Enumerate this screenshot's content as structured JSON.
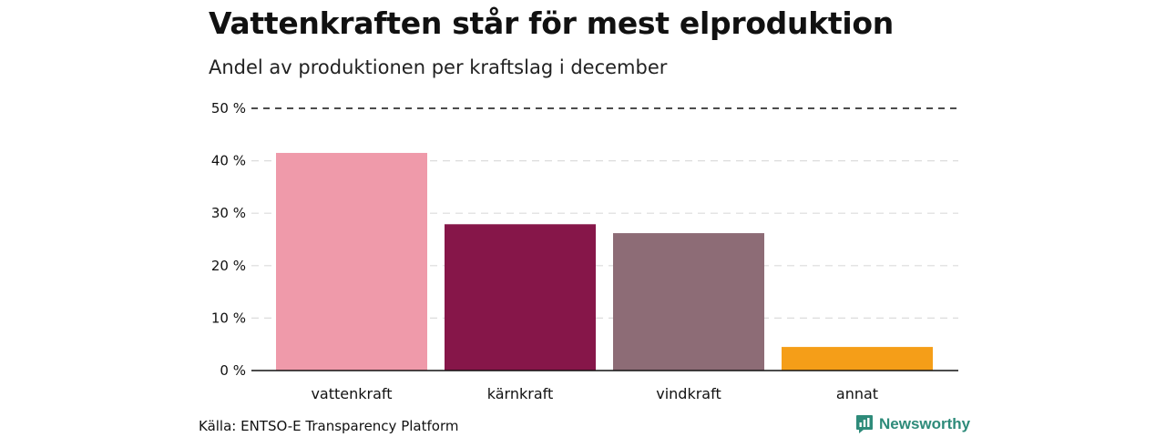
{
  "header": {
    "title": "Vattenkraften står för mest elproduktion",
    "subtitle": "Andel av produktionen per kraftslag i december"
  },
  "footer": {
    "source": "Källa: ENTSO-E Transparency Platform",
    "brand": "Newsworthy",
    "brand_icon": "newsworthy-logo-icon"
  },
  "colors": {
    "vattenkraft": "#ef9aaa",
    "karnkraft": "#861649",
    "vindkraft": "#8d6c76",
    "annat": "#f59e18",
    "brand": "#2e8b7a"
  },
  "chart_data": {
    "type": "bar",
    "title": "Vattenkraften står för mest elproduktion",
    "subtitle": "Andel av produktionen per kraftslag i december",
    "categories": [
      "vattenkraft",
      "kärnkraft",
      "vindkraft",
      "annat"
    ],
    "values": [
      41.5,
      27.9,
      26.2,
      4.5
    ],
    "colors": [
      "#ef9aaa",
      "#861649",
      "#8d6c76",
      "#f59e18"
    ],
    "xlabel": "",
    "ylabel": "",
    "ylim": [
      0,
      50
    ],
    "yticks": [
      0,
      10,
      20,
      30,
      40,
      50
    ],
    "ytick_labels": [
      "0 %",
      "10 %",
      "20 %",
      "30 %",
      "40 %",
      "50 %"
    ],
    "grid": true,
    "legend": "none"
  }
}
